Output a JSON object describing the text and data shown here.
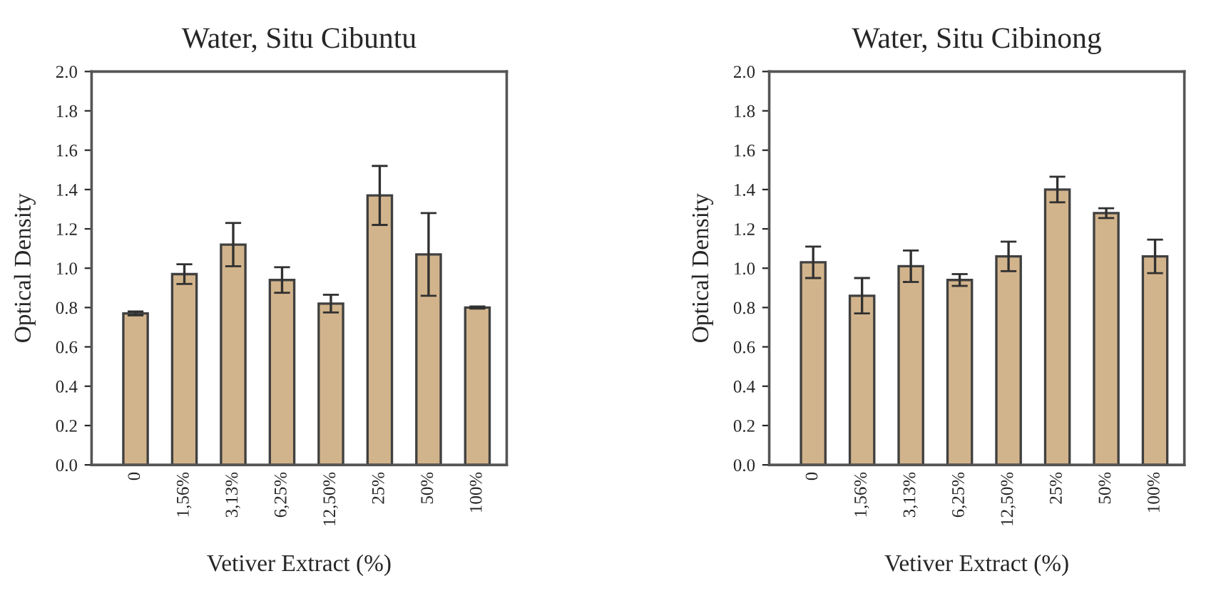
{
  "chart_data": [
    {
      "type": "bar",
      "title": "Water, Situ Cibuntu",
      "xlabel": "Vetiver Extract (%)",
      "ylabel": "Optical Density",
      "categories": [
        "0",
        "1,56%",
        "3,13%",
        "6,25%",
        "12,50%",
        "25%",
        "50%",
        "100%"
      ],
      "values": [
        0.77,
        0.97,
        1.12,
        0.94,
        0.82,
        1.37,
        1.07,
        0.8
      ],
      "errors": [
        0.01,
        0.05,
        0.11,
        0.065,
        0.045,
        0.15,
        0.21,
        0.005
      ],
      "color": "#d2b48c",
      "ylim": [
        0,
        2.0
      ],
      "yticks": [
        {
          "value": 0,
          "label": "0.0"
        },
        0.2,
        0.4,
        0.6,
        0.8,
        {
          "value": 1,
          "label": "1.0"
        },
        1.2,
        1.4,
        1.6,
        1.8,
        {
          "value": 2,
          "label": "2.0"
        }
      ],
      "grid": false
    },
    {
      "type": "bar",
      "title": "Water, Situ Cibinong",
      "xlabel": "Vetiver Extract (%)",
      "ylabel": "Optical Density",
      "categories": [
        "0",
        "1,56%",
        "3,13%",
        "6,25%",
        "12,50%",
        "25%",
        "50%",
        "100%"
      ],
      "values": [
        1.03,
        0.86,
        1.01,
        0.94,
        1.06,
        1.4,
        1.28,
        1.06
      ],
      "errors": [
        0.08,
        0.09,
        0.08,
        0.03,
        0.075,
        0.065,
        0.025,
        0.085
      ],
      "color": "#d2b48c",
      "ylim": [
        0,
        2.0
      ],
      "yticks": [
        {
          "value": 0,
          "label": "0.0"
        },
        0.2,
        0.4,
        0.6,
        0.8,
        {
          "value": 1,
          "label": "1.0"
        },
        1.2,
        1.4,
        1.6,
        1.8,
        {
          "value": 2,
          "label": "2.0"
        }
      ],
      "grid": false
    }
  ]
}
